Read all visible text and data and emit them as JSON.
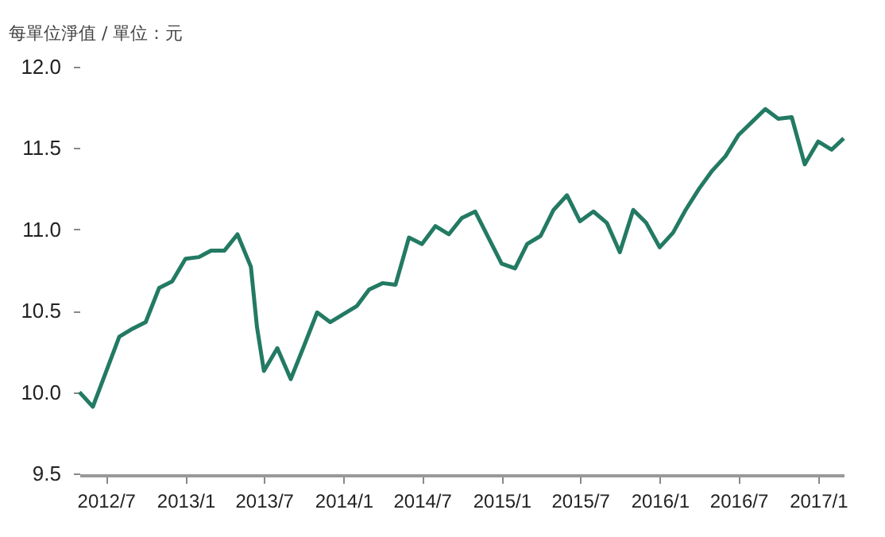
{
  "chart_data": {
    "type": "line",
    "ylabel": "每單位淨值 / 單位：元",
    "x": [
      "2012-05",
      "2012-06",
      "2012-08",
      "2012-09",
      "2012-10",
      "2012-11",
      "2012-12",
      "2013-01",
      "2013-02",
      "2013-03",
      "2013-04",
      "2013-05",
      "2013-06",
      "2013-06-15",
      "2013-07",
      "2013-08",
      "2013-09",
      "2013-10",
      "2013-11",
      "2013-12",
      "2014-01",
      "2014-02",
      "2014-03",
      "2014-04",
      "2014-05",
      "2014-06",
      "2014-07",
      "2014-08",
      "2014-09",
      "2014-10",
      "2014-11",
      "2015-01",
      "2015-02",
      "2015-03",
      "2015-04",
      "2015-05",
      "2015-06",
      "2015-07",
      "2015-08",
      "2015-09",
      "2015-10",
      "2015-11",
      "2015-12",
      "2016-01",
      "2016-02",
      "2016-03",
      "2016-04",
      "2016-05",
      "2016-06",
      "2016-07",
      "2016-08",
      "2016-09",
      "2016-10",
      "2016-11",
      "2016-12",
      "2017-01",
      "2017-02",
      "2017-03"
    ],
    "series": [
      {
        "color": "#237a63",
        "values": [
          10.0,
          9.91,
          10.34,
          10.39,
          10.43,
          10.64,
          10.68,
          10.82,
          10.83,
          10.87,
          10.87,
          10.97,
          10.77,
          10.4,
          10.13,
          10.27,
          10.08,
          10.28,
          10.49,
          10.43,
          10.48,
          10.53,
          10.63,
          10.67,
          10.66,
          10.95,
          10.91,
          11.02,
          10.97,
          11.07,
          11.11,
          10.79,
          10.76,
          10.91,
          10.96,
          11.12,
          11.21,
          11.05,
          11.11,
          11.04,
          10.86,
          11.12,
          11.04,
          10.89,
          10.98,
          11.12,
          11.25,
          11.36,
          11.45,
          11.58,
          11.66,
          11.74,
          11.68,
          11.69,
          11.4,
          11.54,
          11.49,
          11.56
        ]
      }
    ],
    "xticks": [
      {
        "value": "2012-07",
        "label": "2012/7"
      },
      {
        "value": "2013-01",
        "label": "2013/1"
      },
      {
        "value": "2013-07",
        "label": "2013/7"
      },
      {
        "value": "2014-01",
        "label": "2014/1"
      },
      {
        "value": "2014-07",
        "label": "2014/7"
      },
      {
        "value": "2015-01",
        "label": "2015/1"
      },
      {
        "value": "2015-07",
        "label": "2015/7"
      },
      {
        "value": "2016-01",
        "label": "2016/1"
      },
      {
        "value": "2016-07",
        "label": "2016/7"
      },
      {
        "value": "2017-01",
        "label": "2017/1"
      }
    ],
    "xlim": [
      "2012-05",
      "2017-03"
    ],
    "ylim": [
      9.5,
      12.0
    ],
    "yticks": [
      {
        "value": 9.5,
        "label": "9.5"
      },
      {
        "value": 10,
        "label": "10.0"
      },
      {
        "value": 10.5,
        "label": "10.5"
      },
      {
        "value": 11,
        "label": "11.0"
      },
      {
        "value": 11.5,
        "label": "11.5"
      },
      {
        "value": 12,
        "label": "12.0"
      }
    ],
    "grid": false,
    "legend": false,
    "marker": "none",
    "line_style": "solid"
  }
}
